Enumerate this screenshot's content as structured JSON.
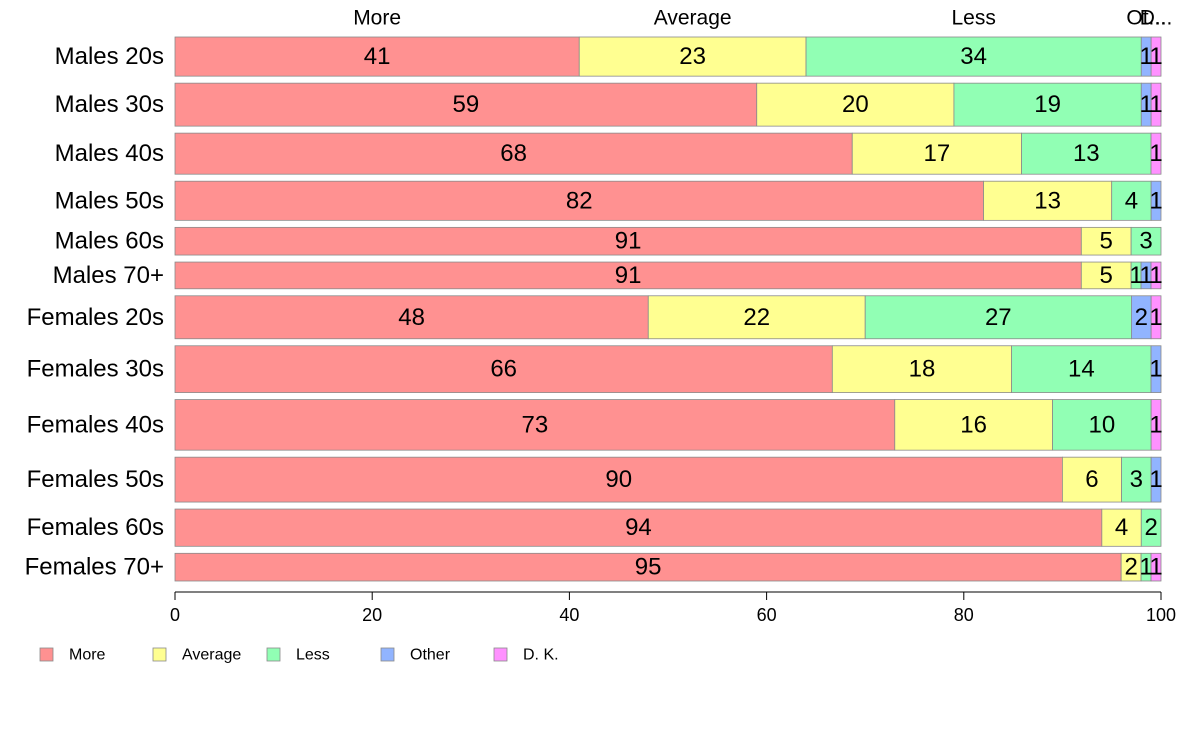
{
  "chart_data": {
    "type": "bar",
    "orientation": "horizontal",
    "stacked": true,
    "title": "",
    "xlabel": "",
    "ylabel": "",
    "xlim": [
      0,
      100
    ],
    "x_ticks": [
      0,
      20,
      40,
      60,
      80,
      100
    ],
    "grid": false,
    "legend_position": "bottom-left",
    "categories": [
      "Males 20s",
      "Males 30s",
      "Males 40s",
      "Males 50s",
      "Males 60s",
      "Males 70+",
      "Females 20s",
      "Females 30s",
      "Females 40s",
      "Females 50s",
      "Females 60s",
      "Females 70+"
    ],
    "category_weights": [
      41,
      45,
      43,
      41,
      29,
      28,
      45,
      49,
      53,
      47,
      39,
      29
    ],
    "series": [
      {
        "name": "More",
        "color": "#FF9191",
        "values": [
          41,
          59,
          68,
          82,
          91,
          91,
          48,
          66,
          73,
          90,
          94,
          95
        ]
      },
      {
        "name": "Average",
        "color": "#FFFF91",
        "values": [
          23,
          20,
          17,
          13,
          5,
          5,
          22,
          18,
          16,
          6,
          4,
          2
        ]
      },
      {
        "name": "Less",
        "color": "#91FFB4",
        "values": [
          34,
          19,
          13,
          4,
          3,
          1,
          27,
          14,
          10,
          3,
          2,
          1
        ]
      },
      {
        "name": "Other",
        "color": "#91B4FF",
        "values": [
          1,
          1,
          0,
          1,
          0,
          1,
          2,
          1,
          0,
          1,
          0,
          0
        ]
      },
      {
        "name": "D. K.",
        "color": "#FF91FF",
        "values": [
          1,
          1,
          1,
          0,
          0,
          1,
          1,
          0,
          1,
          0,
          0,
          1
        ]
      }
    ],
    "top_labels": [
      "More",
      "Average",
      "Less",
      "Ot...",
      "D..."
    ]
  }
}
